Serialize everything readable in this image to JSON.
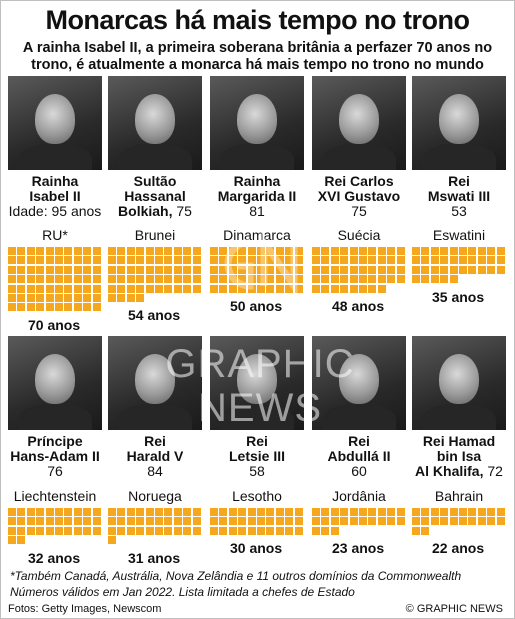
{
  "title": "Monarcas há mais tempo no trono",
  "subtitle_line1": "A rainha Isabel II, a primeira soberana britânia a perfazer 70 anos no",
  "subtitle_line2": "trono, é atualmente a monarca há mais tempo no trono no mundo",
  "row1": [
    {
      "name1": "Rainha",
      "name2": "Isabel II",
      "line3": "Idade: 95 anos",
      "age": "",
      "country": "RU*",
      "years": 70,
      "years_label": "70 anos"
    },
    {
      "name1": "Sultão",
      "name2": "Hassanal",
      "line3": "Bolkiah,",
      "age": "75",
      "country": "Brunei",
      "years": 54,
      "years_label": "54 anos"
    },
    {
      "name1": "Rainha",
      "name2": "Margarida II",
      "line3": "",
      "age": "81",
      "country": "Dinamarca",
      "years": 50,
      "years_label": "50 anos"
    },
    {
      "name1": "Rei Carlos",
      "name2": "XVI Gustavo",
      "line3": "",
      "age": "75",
      "country": "Suécia",
      "years": 48,
      "years_label": "48 anos"
    },
    {
      "name1": "Rei",
      "name2": "Mswati III",
      "line3": "",
      "age": "53",
      "country": "Eswatini",
      "years": 35,
      "years_label": "35 anos"
    }
  ],
  "row2": [
    {
      "name1": "Príncipe",
      "name2": "Hans-Adam II",
      "line3": "",
      "age": "76",
      "country": "Liechtenstein",
      "years": 32,
      "years_label": "32 anos"
    },
    {
      "name1": "Rei",
      "name2": "Harald V",
      "line3": "",
      "age": "84",
      "country": "Noruega",
      "years": 31,
      "years_label": "31 anos"
    },
    {
      "name1": "Rei",
      "name2": "Letsie III",
      "line3": "",
      "age": "58",
      "country": "Lesotho",
      "years": 30,
      "years_label": "30 anos"
    },
    {
      "name1": "Rei",
      "name2": "Abdullá II",
      "line3": "",
      "age": "60",
      "country": "Jordânia",
      "years": 23,
      "years_label": "23 anos"
    },
    {
      "name1": "Rei Hamad",
      "name2": "bin Isa",
      "line3": "Al Khalifa,",
      "age": "72",
      "country": "Bahrain",
      "years": 22,
      "years_label": "22 anos"
    }
  ],
  "footnote1": "*Também Canadá, Austrália, Nova Zelândia e 11 outros domínios da Commonwealth",
  "footnote2": "Números válidos em Jan 2022. Lista limitada a chefes de Estado",
  "photo_credit": "Fotos: Getty Images, Newscom",
  "copyright": "© GRAPHIC NEWS",
  "watermark_text": "GRAPHIC NEWS",
  "colors": {
    "square": "#f5a71d",
    "text": "#111111"
  }
}
